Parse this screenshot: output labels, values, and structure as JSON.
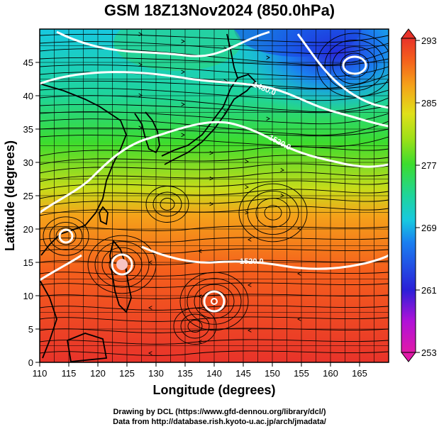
{
  "title": "GSM 18Z13Nov2024 (850.0hPa)",
  "x_axis": {
    "label": "Longitude (degrees)",
    "range": [
      110,
      170
    ],
    "ticks": [
      "110",
      "115",
      "120",
      "125",
      "130",
      "135",
      "140",
      "145",
      "150",
      "155",
      "160",
      "165"
    ]
  },
  "y_axis": {
    "label": "Latitude  (degrees)",
    "range": [
      0,
      50
    ],
    "ticks": [
      "0",
      "5",
      "10",
      "15",
      "20",
      "25",
      "30",
      "35",
      "40",
      "45"
    ]
  },
  "colorbar": {
    "ticks": [
      "293",
      "285",
      "277",
      "269",
      "261",
      "253"
    ],
    "range": [
      253,
      293
    ],
    "colors": [
      "#e01aa8",
      "#b012d8",
      "#2a20d8",
      "#1a7ff0",
      "#18c8e0",
      "#1fd59a",
      "#3ddc2e",
      "#9de018",
      "#e0e01a",
      "#f5a21a",
      "#f5601c",
      "#e8332a"
    ]
  },
  "contours": [
    {
      "label": "1480.0"
    },
    {
      "label": "1520.0"
    },
    {
      "label": "1520.0"
    }
  ],
  "credits": {
    "line1": "Drawing by DCL (https://www.gfd-dennou.org/library/dcl/)",
    "line2": "Data from http://database.rish.kyoto-u.ac.jp/arch/jmadata/"
  },
  "chart_data": {
    "type": "heatmap",
    "title": "GSM 18Z13Nov2024 (850.0hPa)",
    "xlabel": "Longitude (degrees)",
    "ylabel": "Latitude  (degrees)",
    "xlim": [
      110,
      170
    ],
    "ylim": [
      0,
      50
    ],
    "color_range": [
      253,
      293
    ],
    "grid": true
  }
}
